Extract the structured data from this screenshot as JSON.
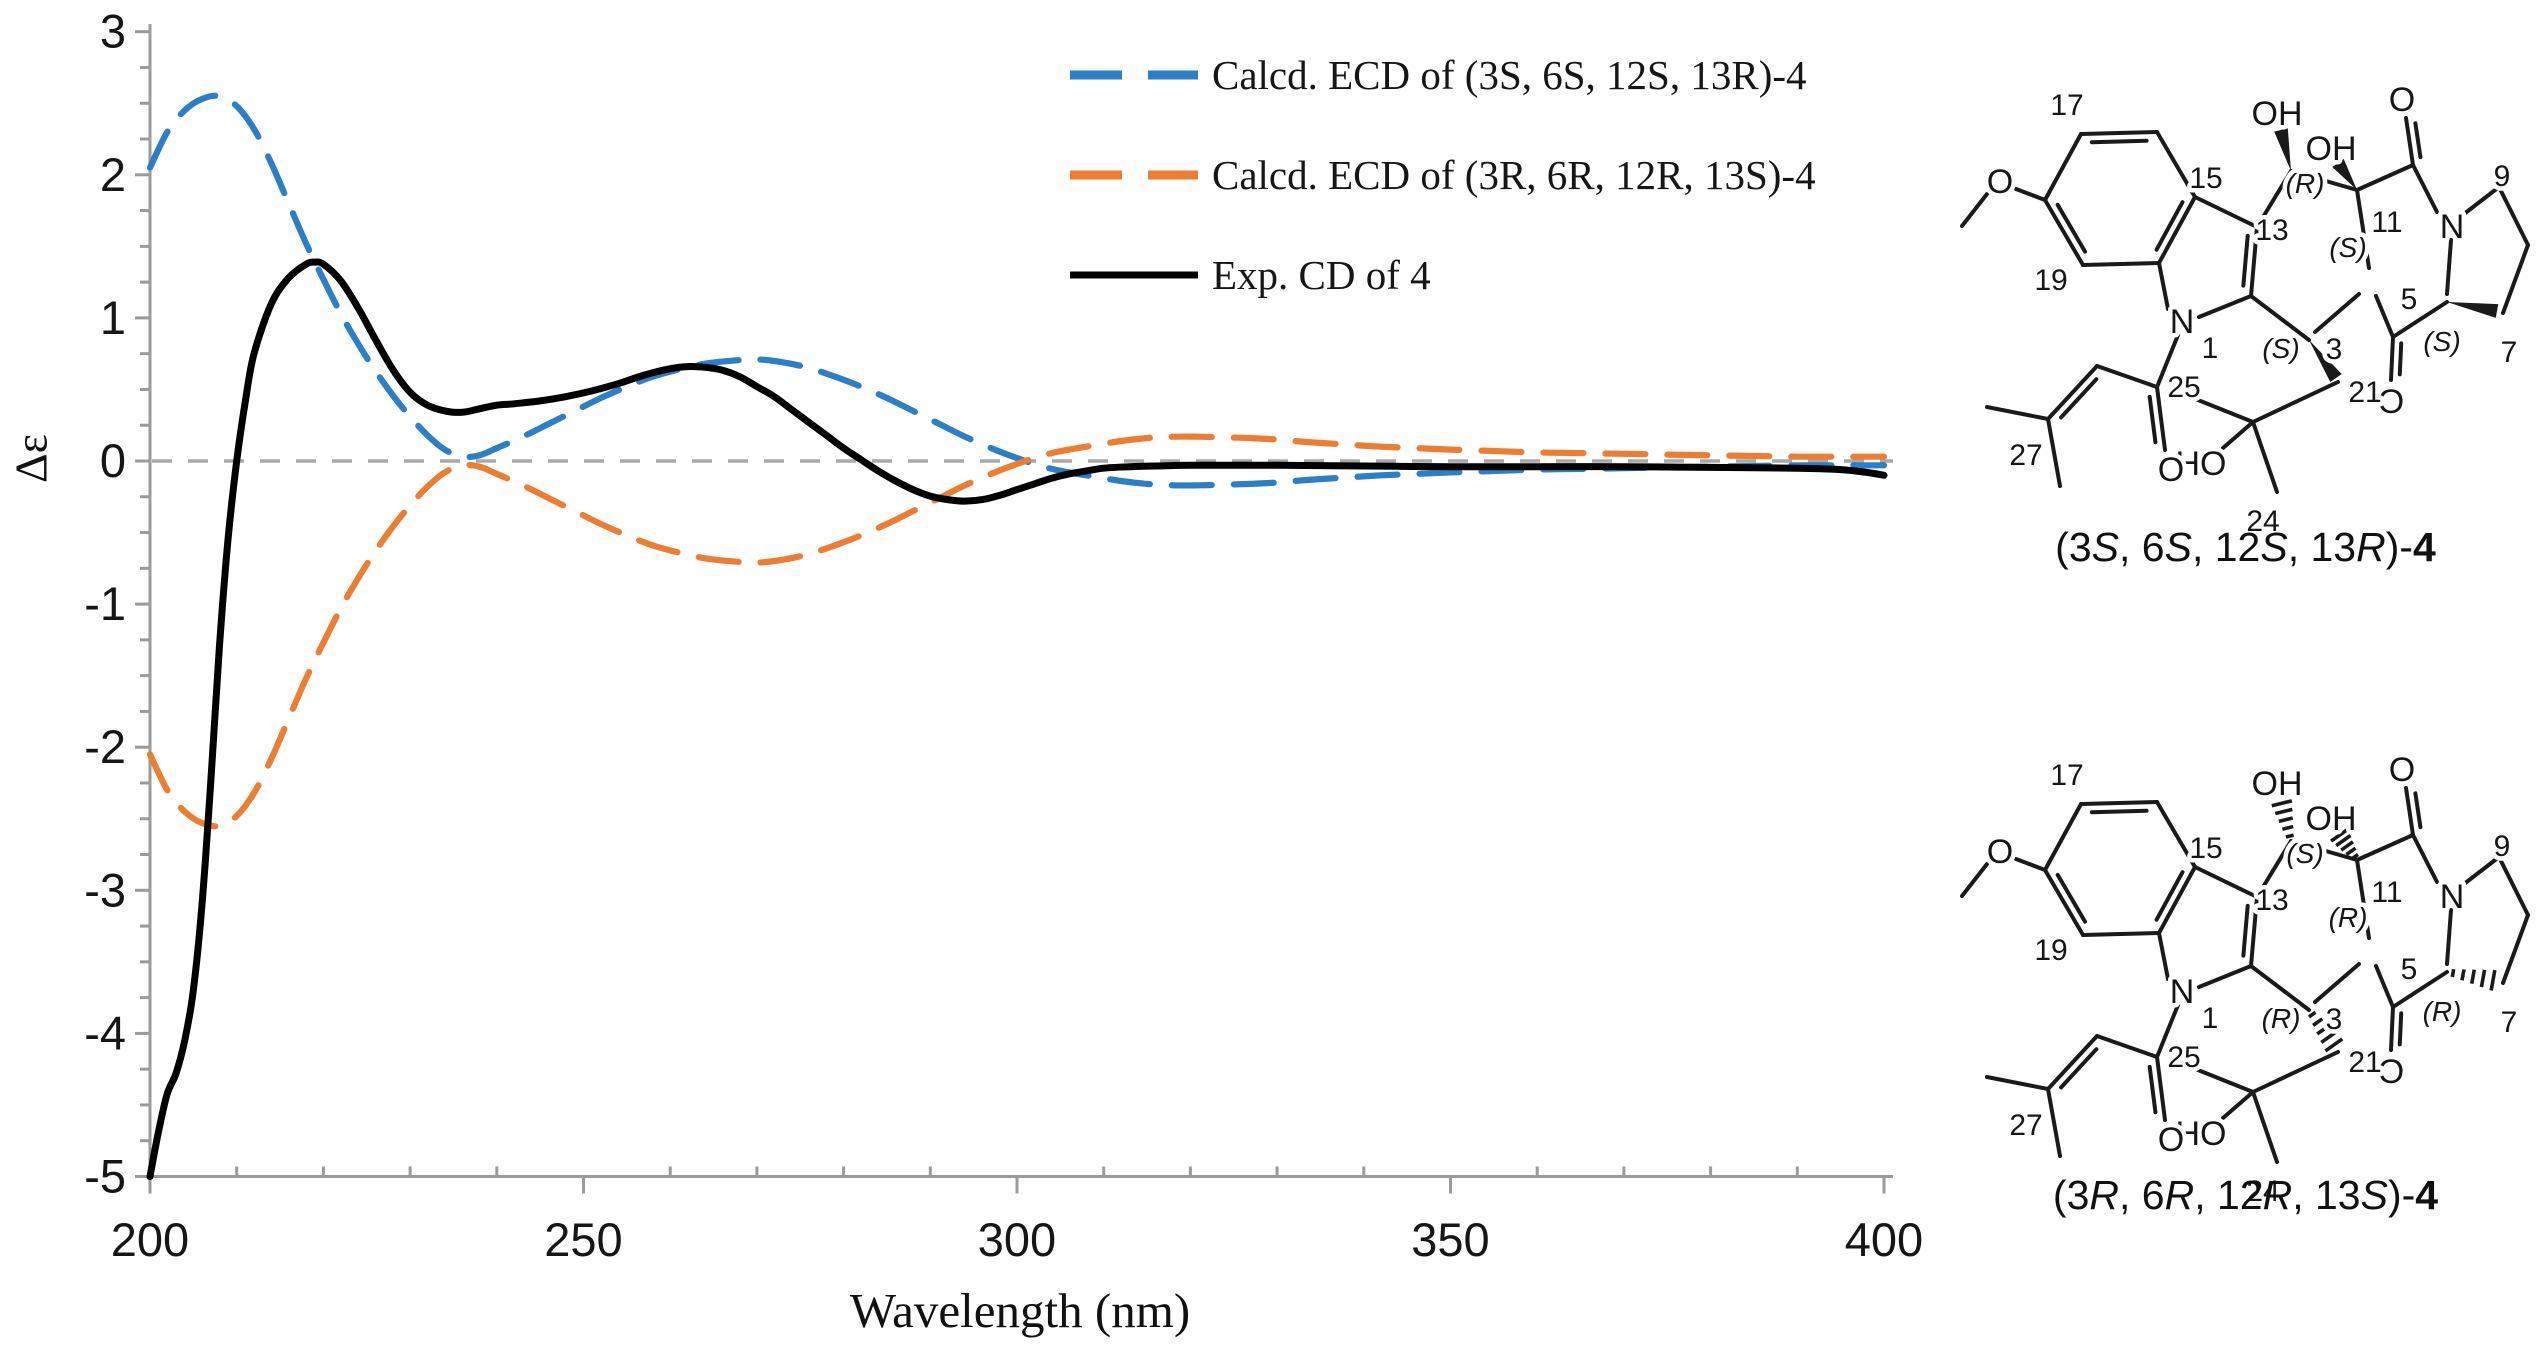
{
  "chart_data": {
    "type": "line",
    "title": "",
    "xlabel": "Wavelength (nm)",
    "ylabel": "Δε",
    "xlim": [
      200,
      400
    ],
    "ylim": [
      -5,
      3
    ],
    "x_ticks": [
      200,
      250,
      300,
      350,
      400
    ],
    "y_ticks": [
      3,
      2,
      1,
      0,
      -1,
      -2,
      -3,
      -4,
      -5
    ],
    "x_minor_step": 10,
    "y_minor_step": 0.25,
    "grid": false,
    "zero_line": {
      "show": true,
      "color": "#A8A8A8",
      "style": "dashed"
    },
    "legend_position": "upper-center-inside",
    "series": [
      {
        "name": "Calcd. ECD of (3S, 6S, 12S, 13R)-4",
        "color": "#2B7FC7",
        "line_style": "dashed",
        "x": [
          200,
          202,
          204,
          206,
          208,
          210,
          212,
          214,
          216,
          218,
          220,
          222,
          224,
          226,
          228,
          230,
          232,
          234,
          236,
          238,
          240,
          243,
          246,
          249,
          252,
          255,
          258,
          261,
          264,
          267,
          270,
          273,
          276,
          279,
          282,
          285,
          288,
          291,
          294,
          297,
          300,
          303,
          306,
          309,
          312,
          315,
          318,
          321,
          324,
          327,
          330,
          334,
          338,
          342,
          346,
          350,
          355,
          360,
          365,
          370,
          375,
          380,
          385,
          390,
          395,
          400
        ],
        "y": [
          2.05,
          2.3,
          2.45,
          2.53,
          2.55,
          2.48,
          2.32,
          2.08,
          1.8,
          1.52,
          1.27,
          1.03,
          0.82,
          0.63,
          0.46,
          0.31,
          0.18,
          0.08,
          0.03,
          0.04,
          0.09,
          0.17,
          0.26,
          0.35,
          0.44,
          0.52,
          0.59,
          0.64,
          0.68,
          0.7,
          0.71,
          0.69,
          0.65,
          0.59,
          0.52,
          0.44,
          0.35,
          0.26,
          0.17,
          0.09,
          0.02,
          -0.04,
          -0.08,
          -0.11,
          -0.14,
          -0.16,
          -0.17,
          -0.17,
          -0.165,
          -0.16,
          -0.15,
          -0.13,
          -0.115,
          -0.1,
          -0.09,
          -0.08,
          -0.07,
          -0.06,
          -0.055,
          -0.05,
          -0.045,
          -0.04,
          -0.035,
          -0.03,
          -0.03,
          -0.03
        ]
      },
      {
        "name": "Calcd. ECD of (3R, 6R, 12R, 13S)-4",
        "color": "#ED7D31",
        "line_style": "dashed",
        "x": [
          200,
          202,
          204,
          206,
          208,
          210,
          212,
          214,
          216,
          218,
          220,
          222,
          224,
          226,
          228,
          230,
          232,
          234,
          236,
          238,
          240,
          243,
          246,
          249,
          252,
          255,
          258,
          261,
          264,
          267,
          270,
          273,
          276,
          279,
          282,
          285,
          288,
          291,
          294,
          297,
          300,
          303,
          306,
          309,
          312,
          315,
          318,
          321,
          324,
          327,
          330,
          334,
          338,
          342,
          346,
          350,
          355,
          360,
          365,
          370,
          375,
          380,
          385,
          390,
          395,
          400
        ],
        "y": [
          -2.05,
          -2.3,
          -2.45,
          -2.53,
          -2.55,
          -2.48,
          -2.32,
          -2.08,
          -1.8,
          -1.52,
          -1.27,
          -1.03,
          -0.82,
          -0.63,
          -0.46,
          -0.31,
          -0.18,
          -0.08,
          -0.03,
          -0.04,
          -0.09,
          -0.17,
          -0.26,
          -0.35,
          -0.44,
          -0.52,
          -0.59,
          -0.64,
          -0.68,
          -0.7,
          -0.71,
          -0.69,
          -0.65,
          -0.59,
          -0.52,
          -0.44,
          -0.35,
          -0.26,
          -0.17,
          -0.09,
          -0.02,
          0.04,
          0.08,
          0.11,
          0.14,
          0.16,
          0.17,
          0.17,
          0.165,
          0.16,
          0.15,
          0.13,
          0.115,
          0.1,
          0.09,
          0.08,
          0.07,
          0.06,
          0.055,
          0.05,
          0.045,
          0.04,
          0.035,
          0.03,
          0.03,
          0.03
        ]
      },
      {
        "name": "Exp. CD of 4",
        "color": "#000000",
        "line_style": "solid",
        "x": [
          200,
          201,
          202,
          203,
          204,
          205,
          206,
          207,
          208,
          209,
          210,
          211,
          212,
          214,
          216,
          218,
          219,
          220,
          222,
          224,
          226,
          228,
          230,
          232,
          234,
          236,
          238,
          240,
          242,
          245,
          248,
          251,
          254,
          257,
          260,
          262,
          264,
          266,
          268,
          270,
          272,
          274,
          276,
          278,
          280,
          282,
          284,
          286,
          288,
          290,
          292,
          294,
          296,
          298,
          300,
          302,
          304,
          306,
          308,
          310,
          313,
          316,
          320,
          325,
          330,
          340,
          350,
          360,
          370,
          380,
          390,
          395,
          398,
          400
        ],
        "y": [
          -5,
          -4.68,
          -4.42,
          -4.28,
          -4.05,
          -3.7,
          -3.1,
          -2.25,
          -1.3,
          -0.55,
          0,
          0.42,
          0.75,
          1.1,
          1.28,
          1.375,
          1.39,
          1.375,
          1.26,
          1.07,
          0.85,
          0.64,
          0.48,
          0.39,
          0.35,
          0.34,
          0.365,
          0.39,
          0.4,
          0.42,
          0.45,
          0.49,
          0.54,
          0.6,
          0.645,
          0.66,
          0.655,
          0.635,
          0.59,
          0.52,
          0.45,
          0.36,
          0.27,
          0.18,
          0.09,
          0.01,
          -0.07,
          -0.14,
          -0.2,
          -0.245,
          -0.27,
          -0.28,
          -0.27,
          -0.24,
          -0.2,
          -0.16,
          -0.12,
          -0.09,
          -0.07,
          -0.05,
          -0.04,
          -0.035,
          -0.03,
          -0.03,
          -0.03,
          -0.035,
          -0.04,
          -0.04,
          -0.04,
          -0.045,
          -0.05,
          -0.06,
          -0.08,
          -0.1
        ]
      }
    ]
  },
  "structures": [
    {
      "caption": "(3S, 6S, 12S, 13R)-4",
      "stereo_bond_style": "wedge",
      "stereo_labels": {
        "c13": "(R)",
        "c12": "(S)",
        "c3": "(S)",
        "c6": "(S)"
      },
      "atom_labels": {
        "methoxy_o": "O",
        "c17": "17",
        "c15": "15",
        "c19": "19",
        "indole_n": "N",
        "c1": "1",
        "c13": "13",
        "oh_13": "OH",
        "oh_12": "OH",
        "c11": "11",
        "o_11": "O",
        "amide_n": "N",
        "c9": "9",
        "c5": "5",
        "o_5": "O",
        "c7": "7",
        "c3": "3",
        "c21": "21",
        "ho_22": "HO",
        "c24": "24",
        "c25": "25",
        "o_25": "O",
        "c27": "27"
      }
    },
    {
      "caption": "(3R, 6R, 12R, 13S)-4",
      "stereo_bond_style": "hash",
      "stereo_labels": {
        "c13": "(S)",
        "c12": "(R)",
        "c3": "(R)",
        "c6": "(R)"
      },
      "atom_labels": {
        "methoxy_o": "O",
        "c17": "17",
        "c15": "15",
        "c19": "19",
        "indole_n": "N",
        "c1": "1",
        "c13": "13",
        "oh_13": "OH",
        "oh_12": "OH",
        "c11": "11",
        "o_11": "O",
        "amide_n": "N",
        "c9": "9",
        "c5": "5",
        "o_5": "O",
        "c7": "7",
        "c3": "3",
        "c21": "21",
        "ho_22": "HO",
        "c24": "24",
        "c25": "25",
        "o_25": "O",
        "c27": "27"
      }
    }
  ]
}
